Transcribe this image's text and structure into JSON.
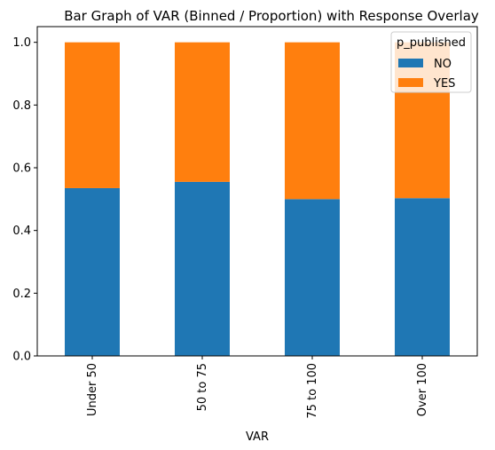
{
  "chart_data": {
    "type": "bar",
    "stacked": true,
    "title": "Bar Graph of VAR (Binned / Proportion) with Response Overlay",
    "xlabel": "VAR",
    "ylabel": "",
    "categories": [
      "Under 50",
      "50 to 75",
      "75 to 100",
      "Over 100"
    ],
    "series": [
      {
        "name": "NO",
        "values": [
          0.535,
          0.555,
          0.5,
          0.503
        ],
        "color": "#1f77b4"
      },
      {
        "name": "YES",
        "values": [
          0.465,
          0.445,
          0.5,
          0.497
        ],
        "color": "#ff7f0e"
      }
    ],
    "ylim": [
      0,
      1.05
    ],
    "yticks": [
      0.0,
      0.2,
      0.4,
      0.6,
      0.8,
      1.0
    ],
    "ytick_labels": [
      "0.0",
      "0.2",
      "0.4",
      "0.6",
      "0.8",
      "1.0"
    ],
    "grid": false,
    "legend": {
      "title": "p_published",
      "position": "top-right"
    }
  }
}
